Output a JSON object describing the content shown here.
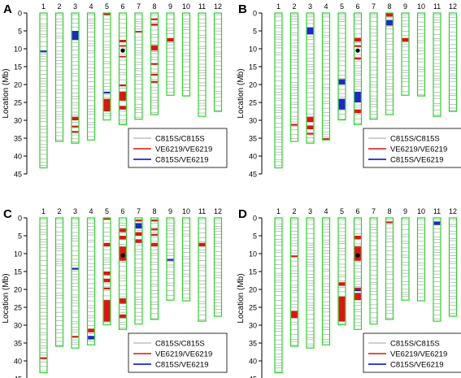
{
  "chart_data": [
    {
      "type": "chromosome-map",
      "panel_label": "A",
      "ylabel": "Location (Mb)",
      "ylim": [
        0,
        45
      ],
      "yticks": [
        0,
        5,
        10,
        15,
        20,
        25,
        30,
        35,
        40,
        45
      ],
      "categories": [
        "1",
        "2",
        "3",
        "4",
        "5",
        "6",
        "7",
        "8",
        "9",
        "10",
        "11",
        "12"
      ],
      "chrom_lengths": [
        43.3,
        35.9,
        36.4,
        35.5,
        29.9,
        31.2,
        29.7,
        28.4,
        23.0,
        23.2,
        28.9,
        27.5
      ],
      "centromere": {
        "chrom": "6",
        "mb": 10.5
      },
      "legend": [
        "C815S/C815S",
        "VE6219/VE6219",
        "C815S/VE6219"
      ],
      "bands": {
        "red": [
          {
            "chrom": "3",
            "start": 29.0,
            "end": 30.0
          },
          {
            "chrom": "3",
            "start": 31.5,
            "end": 32.0
          },
          {
            "chrom": "3",
            "start": 33.0,
            "end": 33.5
          },
          {
            "chrom": "5",
            "start": 0.0,
            "end": 0.6
          },
          {
            "chrom": "5",
            "start": 24.0,
            "end": 27.5
          },
          {
            "chrom": "6",
            "start": 7.5,
            "end": 8.2
          },
          {
            "chrom": "6",
            "start": 9.0,
            "end": 9.4
          },
          {
            "chrom": "6",
            "start": 12.0,
            "end": 12.4
          },
          {
            "chrom": "6",
            "start": 20.0,
            "end": 20.5
          },
          {
            "chrom": "6",
            "start": 22.0,
            "end": 24.5
          },
          {
            "chrom": "6",
            "start": 26.0,
            "end": 27.0
          },
          {
            "chrom": "7",
            "start": 5.0,
            "end": 5.4
          },
          {
            "chrom": "8",
            "start": 1.5,
            "end": 2.0
          },
          {
            "chrom": "8",
            "start": 3.0,
            "end": 3.5
          },
          {
            "chrom": "8",
            "start": 9.0,
            "end": 10.5
          },
          {
            "chrom": "8",
            "start": 14.0,
            "end": 14.5
          },
          {
            "chrom": "8",
            "start": 17.0,
            "end": 17.5
          },
          {
            "chrom": "8",
            "start": 19.0,
            "end": 19.5
          },
          {
            "chrom": "9",
            "start": 7.0,
            "end": 8.0
          }
        ],
        "blue": [
          {
            "chrom": "1",
            "start": 10.5,
            "end": 11.0
          },
          {
            "chrom": "3",
            "start": 5.0,
            "end": 7.5
          },
          {
            "chrom": "5",
            "start": 22.0,
            "end": 22.5
          }
        ]
      }
    },
    {
      "type": "chromosome-map",
      "panel_label": "B",
      "ylabel": "Location (Mb)",
      "ylim": [
        0,
        45
      ],
      "yticks": [
        0,
        5,
        10,
        15,
        20,
        25,
        30,
        35,
        40,
        45
      ],
      "categories": [
        "1",
        "2",
        "3",
        "4",
        "5",
        "6",
        "7",
        "8",
        "9",
        "10",
        "11",
        "12"
      ],
      "chrom_lengths": [
        43.3,
        35.9,
        36.4,
        35.5,
        29.9,
        31.2,
        29.7,
        28.4,
        23.0,
        23.2,
        28.9,
        27.5
      ],
      "centromere": {
        "chrom": "6",
        "mb": 10.5
      },
      "legend": [
        "C815S/C815S",
        "VE6219/VE6219",
        "C815S/VE6219"
      ],
      "bands": {
        "red": [
          {
            "chrom": "2",
            "start": 31.0,
            "end": 31.5
          },
          {
            "chrom": "3",
            "start": 29.0,
            "end": 30.5
          },
          {
            "chrom": "3",
            "start": 31.5,
            "end": 32.5
          },
          {
            "chrom": "3",
            "start": 33.5,
            "end": 34.0
          },
          {
            "chrom": "4",
            "start": 35.0,
            "end": 35.5
          },
          {
            "chrom": "6",
            "start": 7.0,
            "end": 8.0
          },
          {
            "chrom": "6",
            "start": 9.0,
            "end": 9.5
          },
          {
            "chrom": "6",
            "start": 12.5,
            "end": 13.0
          },
          {
            "chrom": "6",
            "start": 27.0,
            "end": 28.0
          },
          {
            "chrom": "8",
            "start": 0.0,
            "end": 1.0
          },
          {
            "chrom": "9",
            "start": 7.0,
            "end": 8.0
          }
        ],
        "blue": [
          {
            "chrom": "3",
            "start": 4.0,
            "end": 6.0
          },
          {
            "chrom": "5",
            "start": 18.5,
            "end": 20.0
          },
          {
            "chrom": "5",
            "start": 24.0,
            "end": 27.0
          },
          {
            "chrom": "6",
            "start": 22.0,
            "end": 25.0
          },
          {
            "chrom": "8",
            "start": 2.0,
            "end": 3.5
          }
        ]
      }
    },
    {
      "type": "chromosome-map",
      "panel_label": "C",
      "ylabel": "Location (Mb)",
      "ylim": [
        0,
        45
      ],
      "yticks": [
        0,
        5,
        10,
        15,
        20,
        25,
        30,
        35,
        40,
        45
      ],
      "categories": [
        "1",
        "2",
        "3",
        "4",
        "5",
        "6",
        "7",
        "8",
        "9",
        "10",
        "11",
        "12"
      ],
      "chrom_lengths": [
        43.3,
        35.9,
        36.4,
        35.5,
        29.9,
        31.2,
        29.7,
        28.4,
        23.0,
        23.2,
        28.9,
        27.5
      ],
      "centromere": {
        "chrom": "6",
        "mb": 10.5
      },
      "legend": [
        "C815S/C815S",
        "VE6219/VE6219",
        "C815S/VE6219"
      ],
      "bands": {
        "red": [
          {
            "chrom": "1",
            "start": 39.0,
            "end": 39.5
          },
          {
            "chrom": "3",
            "start": 33.0,
            "end": 33.5
          },
          {
            "chrom": "4",
            "start": 31.0,
            "end": 32.0
          },
          {
            "chrom": "5",
            "start": 0.0,
            "end": 0.5
          },
          {
            "chrom": "5",
            "start": 7.0,
            "end": 8.0
          },
          {
            "chrom": "5",
            "start": 15.0,
            "end": 16.0
          },
          {
            "chrom": "5",
            "start": 17.0,
            "end": 18.0
          },
          {
            "chrom": "5",
            "start": 19.5,
            "end": 20.0
          },
          {
            "chrom": "5",
            "start": 23.0,
            "end": 29.0
          },
          {
            "chrom": "6",
            "start": 3.0,
            "end": 4.0
          },
          {
            "chrom": "6",
            "start": 5.0,
            "end": 6.0
          },
          {
            "chrom": "6",
            "start": 8.0,
            "end": 12.0
          },
          {
            "chrom": "6",
            "start": 22.5,
            "end": 24.0
          },
          {
            "chrom": "6",
            "start": 27.0,
            "end": 28.0
          },
          {
            "chrom": "7",
            "start": 0.5,
            "end": 1.0
          },
          {
            "chrom": "7",
            "start": 4.0,
            "end": 5.0
          },
          {
            "chrom": "7",
            "start": 6.0,
            "end": 7.0
          },
          {
            "chrom": "8",
            "start": 0.5,
            "end": 1.0
          },
          {
            "chrom": "8",
            "start": 3.0,
            "end": 3.5
          },
          {
            "chrom": "8",
            "start": 4.5,
            "end": 5.0
          },
          {
            "chrom": "8",
            "start": 7.0,
            "end": 8.0
          },
          {
            "chrom": "11",
            "start": 7.0,
            "end": 8.0
          }
        ],
        "blue": [
          {
            "chrom": "3",
            "start": 14.0,
            "end": 14.5
          },
          {
            "chrom": "4",
            "start": 33.0,
            "end": 34.0
          },
          {
            "chrom": "7",
            "start": 1.5,
            "end": 3.0
          },
          {
            "chrom": "9",
            "start": 11.5,
            "end": 12.0
          }
        ]
      }
    },
    {
      "type": "chromosome-map",
      "panel_label": "D",
      "ylabel": "Location (Mb)",
      "ylim": [
        0,
        45
      ],
      "yticks": [
        0,
        5,
        10,
        15,
        20,
        25,
        30,
        35,
        40,
        45
      ],
      "categories": [
        "1",
        "2",
        "3",
        "4",
        "5",
        "6",
        "7",
        "8",
        "9",
        "10",
        "11",
        "12"
      ],
      "chrom_lengths": [
        43.3,
        35.9,
        36.4,
        35.5,
        29.9,
        31.2,
        29.7,
        28.4,
        23.0,
        23.2,
        28.9,
        27.5
      ],
      "centromere": {
        "chrom": "6",
        "mb": 10.5
      },
      "legend": [
        "C815S/C815S",
        "VE6219/VE6219",
        "C815S/VE6219"
      ],
      "bands": {
        "red": [
          {
            "chrom": "2",
            "start": 10.5,
            "end": 11.0
          },
          {
            "chrom": "2",
            "start": 26.0,
            "end": 28.0
          },
          {
            "chrom": "5",
            "start": 18.0,
            "end": 19.0
          },
          {
            "chrom": "5",
            "start": 22.0,
            "end": 29.0
          },
          {
            "chrom": "6",
            "start": 5.0,
            "end": 6.0
          },
          {
            "chrom": "6",
            "start": 8.0,
            "end": 12.0
          },
          {
            "chrom": "6",
            "start": 19.5,
            "end": 20.0
          },
          {
            "chrom": "6",
            "start": 21.0,
            "end": 23.0
          },
          {
            "chrom": "8",
            "start": 1.0,
            "end": 1.5
          }
        ],
        "blue": [
          {
            "chrom": "6",
            "start": 20.0,
            "end": 20.5
          },
          {
            "chrom": "11",
            "start": 1.0,
            "end": 2.0
          }
        ]
      }
    }
  ]
}
